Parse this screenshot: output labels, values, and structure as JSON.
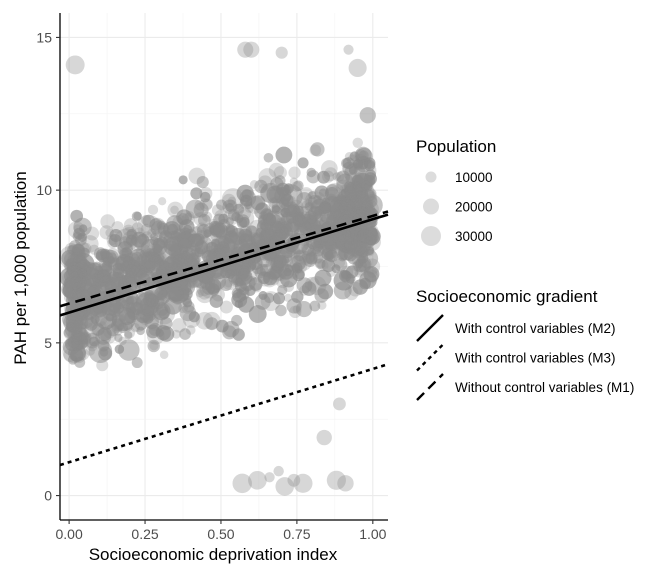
{
  "chart_data": {
    "type": "scatter",
    "xlabel": "Socioeconomic deprivation index",
    "ylabel": "PAH per 1,000 population",
    "xlim": [
      -0.03,
      1.05
    ],
    "ylim": [
      -0.8,
      15.8
    ],
    "x_ticks": [
      "0.00",
      "0.25",
      "0.50",
      "0.75",
      "1.00"
    ],
    "x_tick_values": [
      0,
      0.25,
      0.5,
      0.75,
      1.0
    ],
    "y_ticks": [
      "0",
      "5",
      "10",
      "15"
    ],
    "y_tick_values": [
      0,
      5,
      10,
      15
    ],
    "grid": true,
    "legend_placement": "right",
    "point_color": "#8c8c8c",
    "size_legend": {
      "title": "Population",
      "entries": [
        {
          "label": "10000",
          "value": 10000
        },
        {
          "label": "20000",
          "value": 20000
        },
        {
          "label": "30000",
          "value": 30000
        }
      ]
    },
    "line_legend": {
      "title": "Socioeconomic gradient",
      "entries": [
        {
          "label": "With control variables (M2)",
          "style": "solid"
        },
        {
          "label": "With control variables (M3)",
          "style": "dotted"
        },
        {
          "label": "Without control variables (M1)",
          "style": "dashed"
        }
      ]
    },
    "lines": [
      {
        "label": "With control variables (M2)",
        "style": "solid",
        "x": [
          -0.03,
          1.05
        ],
        "y": [
          5.9,
          9.2
        ]
      },
      {
        "label": "With control variables (M3)",
        "style": "dotted",
        "x": [
          -0.03,
          1.05
        ],
        "y": [
          1.0,
          4.3
        ]
      },
      {
        "label": "Without control variables (M1)",
        "style": "dashed",
        "x": [
          -0.03,
          1.05
        ],
        "y": [
          6.2,
          9.3
        ]
      }
    ],
    "scatter_summary": {
      "n_points": 3000,
      "x_range": [
        0.0,
        1.0
      ],
      "y_main_range": [
        2.5,
        14.6
      ],
      "y_trend": [
        6.5,
        9.2
      ],
      "outliers": [
        {
          "x": 0.02,
          "y": 14.1
        },
        {
          "x": 0.58,
          "y": 14.6
        },
        {
          "x": 0.6,
          "y": 14.6
        },
        {
          "x": 0.7,
          "y": 14.5
        },
        {
          "x": 0.92,
          "y": 14.6
        },
        {
          "x": 0.95,
          "y": 14.0
        },
        {
          "x": 0.57,
          "y": 0.4
        },
        {
          "x": 0.62,
          "y": 0.5
        },
        {
          "x": 0.66,
          "y": 0.6
        },
        {
          "x": 0.69,
          "y": 0.8
        },
        {
          "x": 0.71,
          "y": 0.3
        },
        {
          "x": 0.74,
          "y": 0.5
        },
        {
          "x": 0.77,
          "y": 0.4
        },
        {
          "x": 0.88,
          "y": 0.5
        },
        {
          "x": 0.91,
          "y": 0.4
        },
        {
          "x": 0.84,
          "y": 1.9
        },
        {
          "x": 0.89,
          "y": 3.0
        }
      ]
    }
  }
}
